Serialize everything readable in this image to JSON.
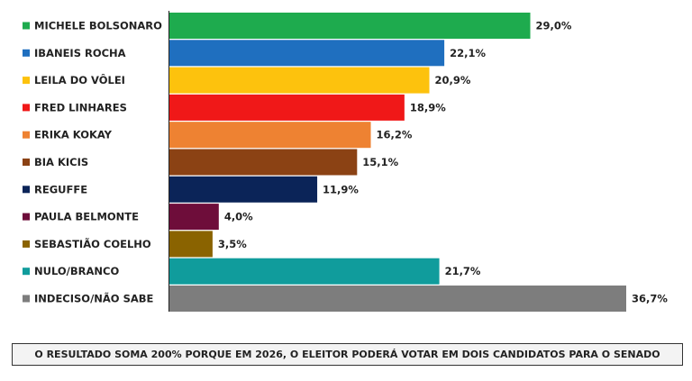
{
  "chart_data": {
    "type": "bar",
    "orientation": "horizontal",
    "categories": [
      "MICHELE BOLSONARO",
      "IBANEIS ROCHA",
      "LEILA DO VÔLEI",
      "FRED LINHARES",
      "ERIKA KOKAY",
      "BIA KICIS",
      "REGUFFE",
      "PAULA BELMONTE",
      "SEBASTIÃO COELHO",
      "NULO/BRANCO",
      "INDECISO/NÃO SABE"
    ],
    "values": [
      29.0,
      22.1,
      20.9,
      18.9,
      16.2,
      15.1,
      11.9,
      4.0,
      3.5,
      21.7,
      36.7
    ],
    "value_labels": [
      "29,0%",
      "22,1%",
      "20,9%",
      "18,9%",
      "16,2%",
      "15,1%",
      "11,9%",
      "4,0%",
      "3,5%",
      "21,7%",
      "36,7%"
    ],
    "colors": [
      "#1eab4e",
      "#1f6fbf",
      "#fdc20d",
      "#f01818",
      "#ee8232",
      "#8b4214",
      "#0b2458",
      "#6e0d3a",
      "#8a6300",
      "#109c9c",
      "#7d7d7d"
    ],
    "title": "",
    "xlabel": "",
    "ylabel": "",
    "xlim": [
      0,
      36.7
    ],
    "legend": "left",
    "grid": false
  },
  "footnote": "O RESULTADO SOMA 200% PORQUE EM 2026, O ELEITOR PODERÁ VOTAR EM DOIS CANDIDATOS PARA O SENADO"
}
